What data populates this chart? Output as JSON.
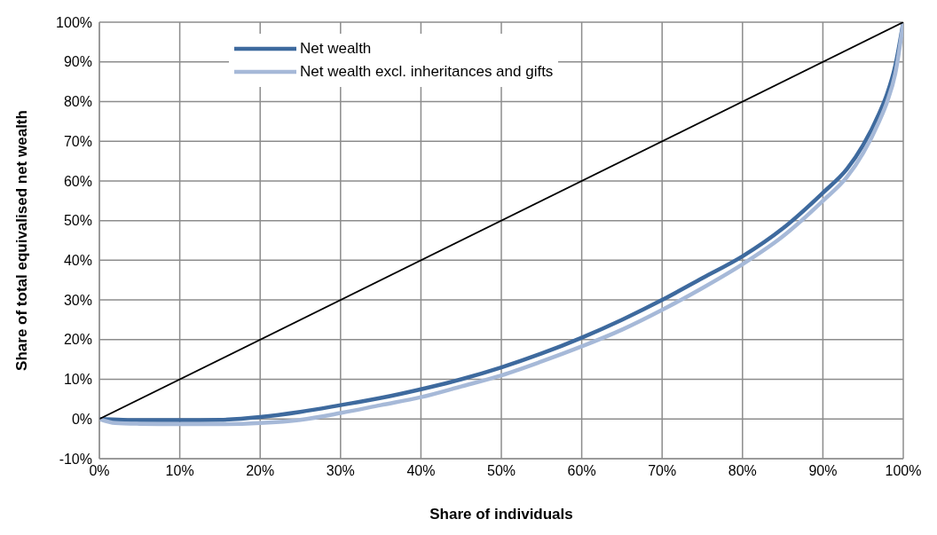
{
  "chart_data": {
    "type": "line",
    "xlabel": "Share of individuals",
    "ylabel": "Share of total equivalised net wealth",
    "xlim": [
      0,
      100
    ],
    "ylim": [
      -10,
      100
    ],
    "xticks": [
      {
        "value": 0,
        "label": "0%"
      },
      {
        "value": 10,
        "label": "10%"
      },
      {
        "value": 20,
        "label": "20%"
      },
      {
        "value": 30,
        "label": "30%"
      },
      {
        "value": 40,
        "label": "40%"
      },
      {
        "value": 50,
        "label": "50%"
      },
      {
        "value": 60,
        "label": "60%"
      },
      {
        "value": 70,
        "label": "70%"
      },
      {
        "value": 80,
        "label": "80%"
      },
      {
        "value": 90,
        "label": "90%"
      },
      {
        "value": 100,
        "label": "100%"
      }
    ],
    "yticks": [
      {
        "value": -10,
        "label": "-10%"
      },
      {
        "value": 0,
        "label": "0%"
      },
      {
        "value": 10,
        "label": "10%"
      },
      {
        "value": 20,
        "label": "20%"
      },
      {
        "value": 30,
        "label": "30%"
      },
      {
        "value": 40,
        "label": "40%"
      },
      {
        "value": 50,
        "label": "50%"
      },
      {
        "value": 60,
        "label": "60%"
      },
      {
        "value": 70,
        "label": "70%"
      },
      {
        "value": 80,
        "label": "80%"
      },
      {
        "value": 90,
        "label": "90%"
      },
      {
        "value": 100,
        "label": "100%"
      }
    ],
    "grid": true,
    "legend": "top left",
    "marker": "none",
    "line_style": "solid",
    "series": [
      {
        "name": "Net wealth",
        "color": "#3e6a9e",
        "x": [
          0,
          5,
          10,
          15,
          20,
          25,
          30,
          35,
          40,
          45,
          50,
          55,
          60,
          65,
          70,
          75,
          80,
          85,
          90,
          93,
          95,
          97,
          98,
          99,
          100
        ],
        "values": [
          0,
          -0.3,
          -0.3,
          -0.2,
          0.5,
          1.8,
          3.5,
          5.3,
          7.5,
          10,
          13,
          16.5,
          20.5,
          25,
          30,
          35.5,
          41,
          48,
          57,
          63,
          69,
          77,
          82,
          89,
          100
        ]
      },
      {
        "name": "Net wealth excl. inheritances and gifts",
        "color": "#a6b9d8",
        "x": [
          0,
          2,
          5,
          10,
          15,
          20,
          25,
          30,
          35,
          40,
          45,
          50,
          55,
          60,
          65,
          70,
          75,
          80,
          85,
          90,
          93,
          95,
          97,
          98,
          99,
          100
        ],
        "values": [
          0,
          -1,
          -1.2,
          -1.3,
          -1.3,
          -1,
          -0.2,
          1.5,
          3.5,
          5.5,
          8.2,
          11,
          14.5,
          18.3,
          22.5,
          27.5,
          33,
          39,
          46,
          55,
          61,
          67,
          75,
          80,
          87,
          100
        ]
      },
      {
        "color": "#000000",
        "x": [
          0,
          100
        ],
        "values": [
          0,
          100
        ]
      }
    ]
  }
}
